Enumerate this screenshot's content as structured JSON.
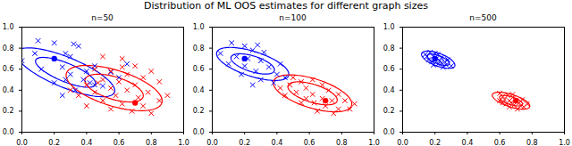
{
  "title": "Distribution of ML OOS estimates for different graph sizes",
  "chart_data": [
    {
      "type": "scatter",
      "title": "n=50",
      "xlim": [
        0,
        1
      ],
      "ylim": [
        0,
        1
      ],
      "xticks": [
        {
          "value": 0,
          "label": "0.0"
        },
        {
          "value": 0.2,
          "label": "0.2"
        },
        {
          "value": 0.4,
          "label": "0.4"
        },
        {
          "value": 0.6,
          "label": "0.6"
        },
        {
          "value": 0.8,
          "label": "0.8"
        },
        {
          "value": 1,
          "label": "1.0"
        }
      ],
      "yticks": [
        {
          "value": 0,
          "label": "0.0"
        },
        {
          "value": 0.2,
          "label": "0.2"
        },
        {
          "value": 0.4,
          "label": "0.4"
        },
        {
          "value": 0.6,
          "label": "0.6"
        },
        {
          "value": 0.8,
          "label": "0.8"
        },
        {
          "value": 1,
          "label": "1.0"
        }
      ],
      "series": [
        {
          "color": "blue",
          "marker": "x",
          "x": [
            0.1,
            0.2,
            0.32,
            0.35,
            0.08,
            0.27,
            0.3,
            0.0,
            0.25,
            0.45,
            0.12,
            0.3,
            0.38,
            0.27,
            0.42,
            0.45,
            0.2,
            0.5,
            0.33,
            0.55,
            0.65,
            0.4,
            0.25,
            0.6
          ],
          "y": [
            0.87,
            0.85,
            0.84,
            0.82,
            0.75,
            0.75,
            0.72,
            0.68,
            0.62,
            0.63,
            0.6,
            0.55,
            0.5,
            0.5,
            0.47,
            0.45,
            0.47,
            0.44,
            0.4,
            0.57,
            0.65,
            0.58,
            0.35,
            0.52
          ]
        },
        {
          "color": "red",
          "marker": "x",
          "x": [
            0.5,
            0.62,
            0.7,
            0.45,
            0.55,
            0.8,
            0.65,
            0.75,
            0.5,
            0.6,
            0.85,
            0.4,
            0.7,
            0.55,
            0.65,
            0.78,
            0.45,
            0.35,
            0.58,
            0.72,
            0.85,
            0.5,
            0.62,
            0.75,
            0.4,
            0.55,
            0.68,
            0.8,
            0.9,
            0.3,
            0.62,
            0.47
          ],
          "y": [
            0.72,
            0.7,
            0.63,
            0.6,
            0.58,
            0.58,
            0.55,
            0.52,
            0.5,
            0.48,
            0.48,
            0.45,
            0.45,
            0.42,
            0.4,
            0.38,
            0.38,
            0.35,
            0.35,
            0.33,
            0.3,
            0.3,
            0.27,
            0.25,
            0.25,
            0.22,
            0.2,
            0.18,
            0.35,
            0.4,
            0.62,
            0.47
          ]
        },
        {
          "color": "blue",
          "marker": "o",
          "x": [
            0.2
          ],
          "y": [
            0.7
          ]
        },
        {
          "color": "red",
          "marker": "o",
          "x": [
            0.7
          ],
          "y": [
            0.28
          ]
        }
      ],
      "ellipses": [
        {
          "color": "blue",
          "center": [
            0.27,
            0.57
          ],
          "semi_axes": [
            0.22,
            0.08
          ],
          "angle": -35
        },
        {
          "color": "blue",
          "center": [
            0.27,
            0.57
          ],
          "semi_axes": [
            0.36,
            0.13
          ],
          "angle": -35
        },
        {
          "color": "red",
          "center": [
            0.57,
            0.42
          ],
          "semi_axes": [
            0.2,
            0.1
          ],
          "angle": -30
        },
        {
          "color": "red",
          "center": [
            0.57,
            0.42
          ],
          "semi_axes": [
            0.33,
            0.16
          ],
          "angle": -30
        }
      ]
    },
    {
      "type": "scatter",
      "title": "n=100",
      "xlim": [
        0,
        1
      ],
      "ylim": [
        0,
        1
      ],
      "xticks": [
        {
          "value": 0,
          "label": "0.0"
        },
        {
          "value": 0.2,
          "label": "0.2"
        },
        {
          "value": 0.4,
          "label": "0.4"
        },
        {
          "value": 0.6,
          "label": "0.6"
        },
        {
          "value": 0.8,
          "label": "0.8"
        },
        {
          "value": 1,
          "label": "1.0"
        }
      ],
      "yticks": [
        {
          "value": 0,
          "label": "0.0"
        },
        {
          "value": 0.2,
          "label": "0.2"
        },
        {
          "value": 0.4,
          "label": "0.4"
        },
        {
          "value": 0.6,
          "label": "0.6"
        },
        {
          "value": 0.8,
          "label": "0.8"
        },
        {
          "value": 1,
          "label": "1.0"
        }
      ],
      "series": [
        {
          "color": "blue",
          "marker": "x",
          "x": [
            0.12,
            0.2,
            0.28,
            0.25,
            0.32,
            0.15,
            0.22,
            0.3,
            0.1,
            0.2,
            0.35,
            0.27,
            0.18,
            0.4,
            0.3,
            0.45,
            0.38,
            0.05,
            0.42,
            0.25
          ],
          "y": [
            0.85,
            0.82,
            0.83,
            0.78,
            0.76,
            0.72,
            0.7,
            0.68,
            0.65,
            0.63,
            0.62,
            0.58,
            0.55,
            0.55,
            0.5,
            0.52,
            0.47,
            0.75,
            0.65,
            0.45
          ]
        },
        {
          "color": "red",
          "marker": "x",
          "x": [
            0.5,
            0.55,
            0.62,
            0.48,
            0.58,
            0.68,
            0.72,
            0.52,
            0.62,
            0.78,
            0.45,
            0.58,
            0.68,
            0.74,
            0.82,
            0.63,
            0.7,
            0.78,
            0.55,
            0.85,
            0.65,
            0.75,
            0.42,
            0.88
          ],
          "y": [
            0.52,
            0.48,
            0.5,
            0.45,
            0.42,
            0.45,
            0.4,
            0.38,
            0.36,
            0.36,
            0.35,
            0.32,
            0.32,
            0.3,
            0.3,
            0.28,
            0.25,
            0.22,
            0.28,
            0.22,
            0.2,
            0.18,
            0.42,
            0.27
          ]
        },
        {
          "color": "blue",
          "marker": "o",
          "x": [
            0.2
          ],
          "y": [
            0.7
          ]
        },
        {
          "color": "red",
          "marker": "o",
          "x": [
            0.7
          ],
          "y": [
            0.3
          ]
        }
      ],
      "ellipses": [
        {
          "color": "blue",
          "center": [
            0.25,
            0.65
          ],
          "semi_axes": [
            0.15,
            0.07
          ],
          "angle": -30
        },
        {
          "color": "blue",
          "center": [
            0.25,
            0.65
          ],
          "semi_axes": [
            0.25,
            0.11
          ],
          "angle": -30
        },
        {
          "color": "red",
          "center": [
            0.62,
            0.37
          ],
          "semi_axes": [
            0.17,
            0.08
          ],
          "angle": -30
        },
        {
          "color": "red",
          "center": [
            0.62,
            0.37
          ],
          "semi_axes": [
            0.27,
            0.13
          ],
          "angle": -30
        }
      ]
    },
    {
      "type": "scatter",
      "title": "n=500",
      "xlim": [
        0,
        1
      ],
      "ylim": [
        0,
        1
      ],
      "xticks": [
        {
          "value": 0,
          "label": "0.0"
        },
        {
          "value": 0.2,
          "label": "0.2"
        },
        {
          "value": 0.4,
          "label": "0.4"
        },
        {
          "value": 0.6,
          "label": "0.6"
        },
        {
          "value": 0.8,
          "label": "0.8"
        },
        {
          "value": 1,
          "label": "1.0"
        }
      ],
      "yticks": [
        {
          "value": 0,
          "label": "0.0"
        },
        {
          "value": 0.2,
          "label": "0.2"
        },
        {
          "value": 0.4,
          "label": "0.4"
        },
        {
          "value": 0.6,
          "label": "0.6"
        },
        {
          "value": 0.8,
          "label": "0.8"
        },
        {
          "value": 1,
          "label": "1.0"
        }
      ],
      "series": [
        {
          "color": "blue",
          "marker": "x",
          "x": [
            0.17,
            0.2,
            0.22,
            0.15,
            0.19,
            0.24,
            0.2,
            0.23,
            0.26,
            0.18,
            0.22,
            0.27,
            0.25,
            0.3,
            0.14,
            0.21,
            0.28,
            0.16,
            0.24,
            0.19
          ],
          "y": [
            0.76,
            0.75,
            0.74,
            0.72,
            0.72,
            0.71,
            0.69,
            0.68,
            0.67,
            0.67,
            0.65,
            0.64,
            0.62,
            0.63,
            0.74,
            0.7,
            0.69,
            0.69,
            0.66,
            0.64
          ]
        },
        {
          "color": "red",
          "marker": "x",
          "x": [
            0.6,
            0.62,
            0.65,
            0.68,
            0.63,
            0.66,
            0.7,
            0.72,
            0.67,
            0.64,
            0.69,
            0.73,
            0.75,
            0.71,
            0.66,
            0.6,
            0.77,
            0.68,
            0.74,
            0.62
          ],
          "y": [
            0.37,
            0.34,
            0.35,
            0.33,
            0.31,
            0.3,
            0.3,
            0.28,
            0.28,
            0.27,
            0.26,
            0.25,
            0.24,
            0.22,
            0.24,
            0.3,
            0.27,
            0.36,
            0.31,
            0.28
          ]
        },
        {
          "color": "blue",
          "marker": "o",
          "x": [
            0.2
          ],
          "y": [
            0.7
          ]
        },
        {
          "color": "red",
          "marker": "o",
          "x": [
            0.7
          ],
          "y": [
            0.3
          ]
        }
      ],
      "ellipses": [
        {
          "color": "blue",
          "center": [
            0.22,
            0.69
          ],
          "semi_axes": [
            0.08,
            0.035
          ],
          "angle": -35
        },
        {
          "color": "blue",
          "center": [
            0.22,
            0.69
          ],
          "semi_axes": [
            0.12,
            0.055
          ],
          "angle": -35
        },
        {
          "color": "red",
          "center": [
            0.67,
            0.3
          ],
          "semi_axes": [
            0.08,
            0.035
          ],
          "angle": -30
        },
        {
          "color": "red",
          "center": [
            0.67,
            0.3
          ],
          "semi_axes": [
            0.13,
            0.055
          ],
          "angle": -30
        }
      ]
    }
  ]
}
